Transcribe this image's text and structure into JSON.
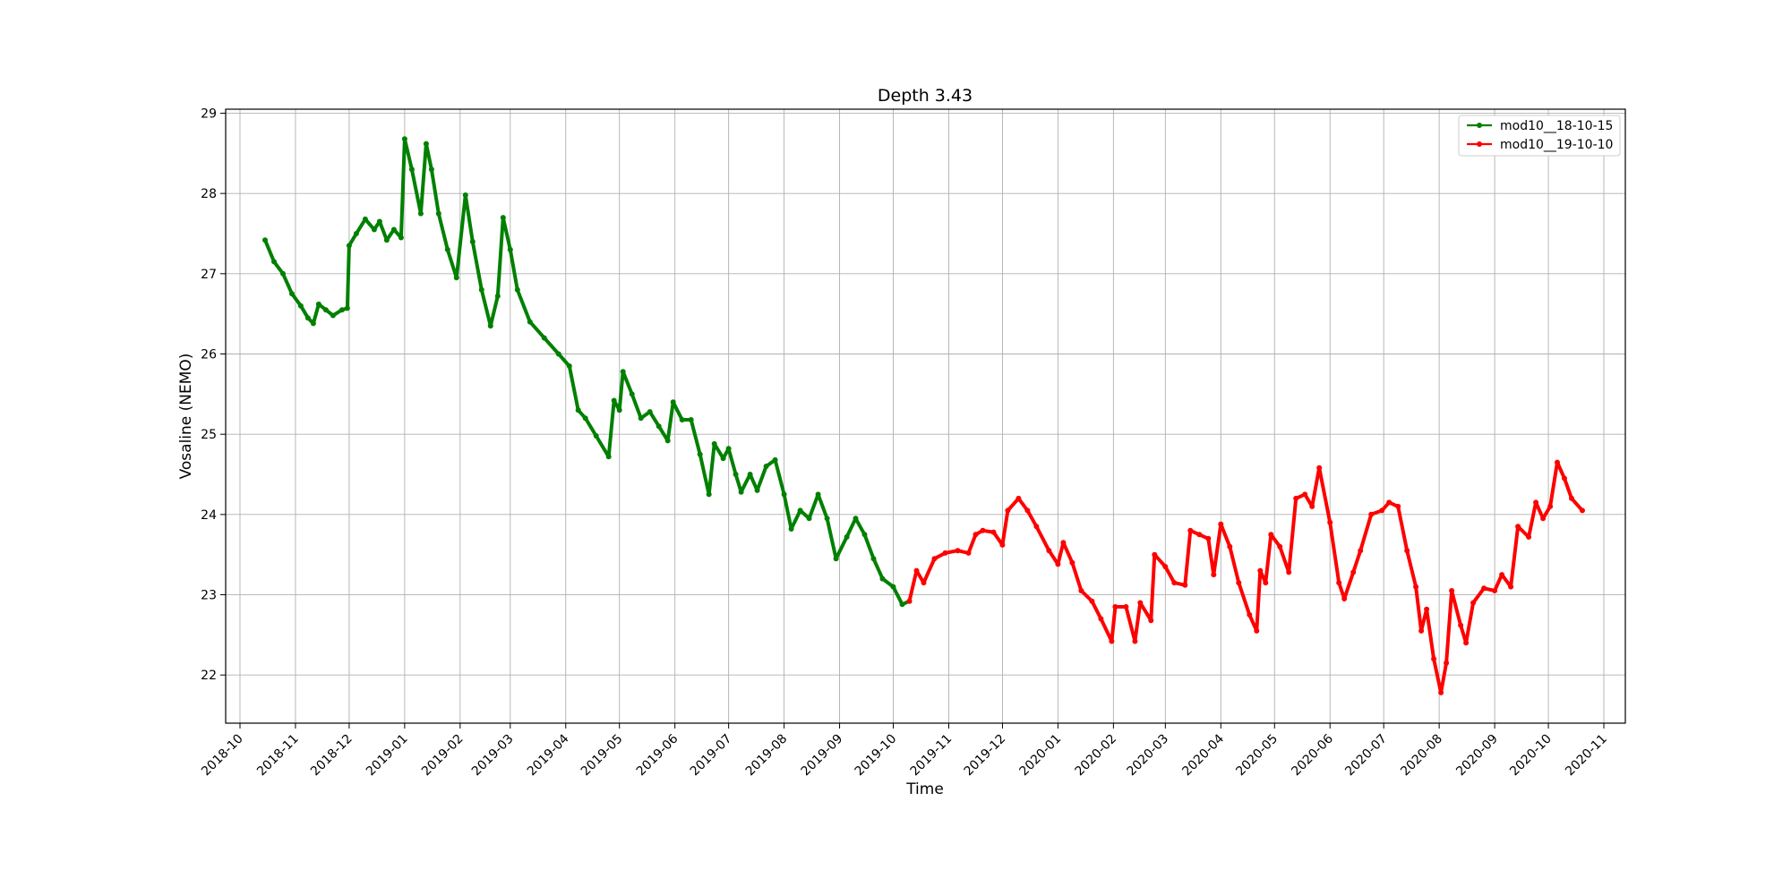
{
  "chart_data": {
    "type": "line",
    "title": "Depth 3.43",
    "xlabel": "Time",
    "ylabel": "Vosaline (NEMO)",
    "x_ticks": [
      "2018-10",
      "2018-11",
      "2018-12",
      "2019-01",
      "2019-02",
      "2019-03",
      "2019-04",
      "2019-05",
      "2019-06",
      "2019-07",
      "2019-08",
      "2019-09",
      "2019-10",
      "2019-11",
      "2019-12",
      "2020-01",
      "2020-02",
      "2020-03",
      "2020-04",
      "2020-05",
      "2020-06",
      "2020-07",
      "2020-08",
      "2020-09",
      "2020-10",
      "2020-11"
    ],
    "y_ticks": [
      22,
      23,
      24,
      25,
      26,
      27,
      28,
      29
    ],
    "xlim": [
      "2018-09-23",
      "2020-11-13"
    ],
    "ylim": [
      21.4,
      29.05
    ],
    "grid": true,
    "legend_position": "top-right",
    "series": [
      {
        "name": "mod10__18-10-15",
        "color": "#008000",
        "marker": "dot",
        "points": [
          [
            "2018-10-15",
            27.42
          ],
          [
            "2018-10-20",
            27.15
          ],
          [
            "2018-10-25",
            27.0
          ],
          [
            "2018-10-30",
            26.75
          ],
          [
            "2018-11-04",
            26.6
          ],
          [
            "2018-11-08",
            26.45
          ],
          [
            "2018-11-11",
            26.38
          ],
          [
            "2018-11-14",
            26.62
          ],
          [
            "2018-11-18",
            26.55
          ],
          [
            "2018-11-22",
            26.48
          ],
          [
            "2018-11-27",
            26.55
          ],
          [
            "2018-11-30",
            26.57
          ],
          [
            "2018-12-01",
            27.35
          ],
          [
            "2018-12-05",
            27.5
          ],
          [
            "2018-12-10",
            27.68
          ],
          [
            "2018-12-15",
            27.55
          ],
          [
            "2018-12-18",
            27.65
          ],
          [
            "2018-12-22",
            27.42
          ],
          [
            "2018-12-26",
            27.55
          ],
          [
            "2018-12-30",
            27.45
          ],
          [
            "2019-01-01",
            28.68
          ],
          [
            "2019-01-05",
            28.3
          ],
          [
            "2019-01-10",
            27.75
          ],
          [
            "2019-01-13",
            28.62
          ],
          [
            "2019-01-16",
            28.3
          ],
          [
            "2019-01-20",
            27.75
          ],
          [
            "2019-01-25",
            27.3
          ],
          [
            "2019-01-30",
            26.95
          ],
          [
            "2019-02-04",
            27.98
          ],
          [
            "2019-02-08",
            27.4
          ],
          [
            "2019-02-13",
            26.8
          ],
          [
            "2019-02-18",
            26.35
          ],
          [
            "2019-02-22",
            26.72
          ],
          [
            "2019-02-25",
            27.7
          ],
          [
            "2019-03-01",
            27.3
          ],
          [
            "2019-03-05",
            26.8
          ],
          [
            "2019-03-12",
            26.4
          ],
          [
            "2019-03-20",
            26.2
          ],
          [
            "2019-03-28",
            26.0
          ],
          [
            "2019-04-03",
            25.85
          ],
          [
            "2019-04-08",
            25.3
          ],
          [
            "2019-04-12",
            25.2
          ],
          [
            "2019-04-18",
            24.98
          ],
          [
            "2019-04-25",
            24.72
          ],
          [
            "2019-04-28",
            25.42
          ],
          [
            "2019-05-01",
            25.3
          ],
          [
            "2019-05-03",
            25.78
          ],
          [
            "2019-05-08",
            25.5
          ],
          [
            "2019-05-13",
            25.2
          ],
          [
            "2019-05-18",
            25.28
          ],
          [
            "2019-05-23",
            25.1
          ],
          [
            "2019-05-28",
            24.92
          ],
          [
            "2019-05-31",
            25.4
          ],
          [
            "2019-06-05",
            25.18
          ],
          [
            "2019-06-10",
            25.18
          ],
          [
            "2019-06-15",
            24.75
          ],
          [
            "2019-06-20",
            24.25
          ],
          [
            "2019-06-23",
            24.88
          ],
          [
            "2019-06-28",
            24.7
          ],
          [
            "2019-07-01",
            24.82
          ],
          [
            "2019-07-05",
            24.5
          ],
          [
            "2019-07-08",
            24.28
          ],
          [
            "2019-07-13",
            24.5
          ],
          [
            "2019-07-17",
            24.3
          ],
          [
            "2019-07-22",
            24.6
          ],
          [
            "2019-07-27",
            24.68
          ],
          [
            "2019-08-01",
            24.25
          ],
          [
            "2019-08-05",
            23.82
          ],
          [
            "2019-08-10",
            24.05
          ],
          [
            "2019-08-15",
            23.95
          ],
          [
            "2019-08-20",
            24.25
          ],
          [
            "2019-08-25",
            23.95
          ],
          [
            "2019-08-30",
            23.45
          ],
          [
            "2019-09-05",
            23.72
          ],
          [
            "2019-09-10",
            23.95
          ],
          [
            "2019-09-15",
            23.75
          ],
          [
            "2019-09-20",
            23.45
          ],
          [
            "2019-09-25",
            23.2
          ],
          [
            "2019-10-01",
            23.1
          ],
          [
            "2019-10-06",
            22.88
          ],
          [
            "2019-10-10",
            22.92
          ]
        ]
      },
      {
        "name": "mod10__19-10-10",
        "color": "#ff0000",
        "marker": "dot",
        "points": [
          [
            "2019-10-10",
            22.92
          ],
          [
            "2019-10-14",
            23.3
          ],
          [
            "2019-10-18",
            23.15
          ],
          [
            "2019-10-24",
            23.45
          ],
          [
            "2019-10-30",
            23.52
          ],
          [
            "2019-11-06",
            23.55
          ],
          [
            "2019-11-12",
            23.52
          ],
          [
            "2019-11-16",
            23.75
          ],
          [
            "2019-11-20",
            23.8
          ],
          [
            "2019-11-26",
            23.78
          ],
          [
            "2019-12-01",
            23.62
          ],
          [
            "2019-12-04",
            24.05
          ],
          [
            "2019-12-10",
            24.2
          ],
          [
            "2019-12-15",
            24.05
          ],
          [
            "2019-12-20",
            23.85
          ],
          [
            "2019-12-27",
            23.55
          ],
          [
            "2020-01-01",
            23.38
          ],
          [
            "2020-01-04",
            23.65
          ],
          [
            "2020-01-09",
            23.4
          ],
          [
            "2020-01-14",
            23.05
          ],
          [
            "2020-01-20",
            22.92
          ],
          [
            "2020-01-25",
            22.7
          ],
          [
            "2020-01-31",
            22.42
          ],
          [
            "2020-02-02",
            22.85
          ],
          [
            "2020-02-08",
            22.85
          ],
          [
            "2020-02-13",
            22.42
          ],
          [
            "2020-02-16",
            22.9
          ],
          [
            "2020-02-22",
            22.68
          ],
          [
            "2020-02-24",
            23.5
          ],
          [
            "2020-03-01",
            23.35
          ],
          [
            "2020-03-06",
            23.15
          ],
          [
            "2020-03-12",
            23.12
          ],
          [
            "2020-03-15",
            23.8
          ],
          [
            "2020-03-20",
            23.75
          ],
          [
            "2020-03-25",
            23.7
          ],
          [
            "2020-03-28",
            23.25
          ],
          [
            "2020-04-01",
            23.88
          ],
          [
            "2020-04-06",
            23.6
          ],
          [
            "2020-04-11",
            23.15
          ],
          [
            "2020-04-17",
            22.75
          ],
          [
            "2020-04-21",
            22.55
          ],
          [
            "2020-04-23",
            23.3
          ],
          [
            "2020-04-26",
            23.15
          ],
          [
            "2020-04-29",
            23.75
          ],
          [
            "2020-05-04",
            23.6
          ],
          [
            "2020-05-09",
            23.28
          ],
          [
            "2020-05-13",
            24.2
          ],
          [
            "2020-05-18",
            24.25
          ],
          [
            "2020-05-22",
            24.1
          ],
          [
            "2020-05-26",
            24.58
          ],
          [
            "2020-06-01",
            23.9
          ],
          [
            "2020-06-06",
            23.15
          ],
          [
            "2020-06-09",
            22.95
          ],
          [
            "2020-06-14",
            23.28
          ],
          [
            "2020-06-18",
            23.55
          ],
          [
            "2020-06-24",
            24.0
          ],
          [
            "2020-06-30",
            24.05
          ],
          [
            "2020-07-04",
            24.15
          ],
          [
            "2020-07-09",
            24.1
          ],
          [
            "2020-07-14",
            23.55
          ],
          [
            "2020-07-19",
            23.1
          ],
          [
            "2020-07-22",
            22.55
          ],
          [
            "2020-07-25",
            22.82
          ],
          [
            "2020-07-29",
            22.2
          ],
          [
            "2020-08-02",
            21.78
          ],
          [
            "2020-08-05",
            22.15
          ],
          [
            "2020-08-08",
            23.05
          ],
          [
            "2020-08-13",
            22.62
          ],
          [
            "2020-08-16",
            22.4
          ],
          [
            "2020-08-20",
            22.9
          ],
          [
            "2020-08-26",
            23.08
          ],
          [
            "2020-09-01",
            23.05
          ],
          [
            "2020-09-05",
            23.25
          ],
          [
            "2020-09-10",
            23.1
          ],
          [
            "2020-09-14",
            23.85
          ],
          [
            "2020-09-20",
            23.72
          ],
          [
            "2020-09-24",
            24.15
          ],
          [
            "2020-09-28",
            23.95
          ],
          [
            "2020-10-02",
            24.1
          ],
          [
            "2020-10-06",
            24.65
          ],
          [
            "2020-10-10",
            24.45
          ],
          [
            "2020-10-14",
            24.2
          ],
          [
            "2020-10-20",
            24.05
          ]
        ]
      }
    ]
  }
}
